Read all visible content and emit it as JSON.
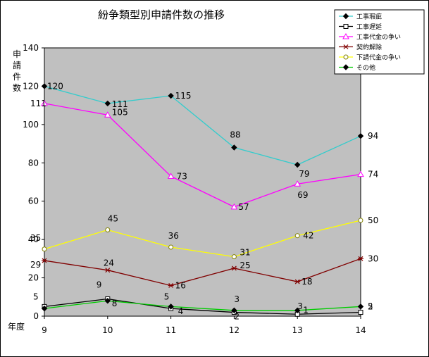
{
  "chart_data": {
    "type": "line",
    "title": "紛争類型別申請件数の推移",
    "ylabel": "申請件数",
    "xlabel": "年度",
    "x": [
      9,
      10,
      11,
      12,
      13,
      14
    ],
    "ylim": [
      0,
      140
    ],
    "yticks": [
      0,
      20,
      40,
      60,
      80,
      100,
      120,
      140
    ],
    "grid": false,
    "plot_background": "#c0c0c0",
    "legend_position": "top-right",
    "series": [
      {
        "name": "工事瑕疵",
        "values": [
          120,
          111,
          115,
          88,
          79,
          94
        ],
        "color": "#33cccc",
        "marker": "diamond-filled",
        "labels": [
          "120",
          "111",
          "115",
          "88",
          "",
          "94"
        ]
      },
      {
        "name": "工事遅延",
        "values": [
          5,
          9,
          4,
          2,
          1,
          2
        ],
        "color": "#000000",
        "marker": "square-open",
        "labels": [
          "5",
          "9",
          "4",
          "2",
          "1",
          "2"
        ]
      },
      {
        "name": "工事代金の争い",
        "values": [
          111,
          105,
          73,
          57,
          69,
          74
        ],
        "color": "#ff00ff",
        "marker": "triangle-open",
        "labels": [
          "111",
          "105",
          "73",
          "57",
          "69",
          "74"
        ]
      },
      {
        "name": "契約解除",
        "values": [
          29,
          24,
          16,
          25,
          18,
          30
        ],
        "color": "#800000",
        "marker": "star",
        "labels": [
          "29",
          "24",
          "16",
          "25",
          "18",
          "30"
        ]
      },
      {
        "name": "下請代金の争い",
        "values": [
          35,
          45,
          36,
          31,
          42,
          50
        ],
        "color": "#ffff00",
        "marker": "circle-open",
        "labels": [
          "35",
          "45",
          "36",
          "31",
          "42",
          "50"
        ]
      },
      {
        "name": "その他",
        "values": [
          4,
          8,
          5,
          3,
          3,
          5
        ],
        "color": "#00cc00",
        "marker": "diamond-filled",
        "labels": [
          "",
          "8",
          "5",
          "3",
          "3",
          "5"
        ]
      }
    ],
    "annotations": [
      "79"
    ]
  }
}
